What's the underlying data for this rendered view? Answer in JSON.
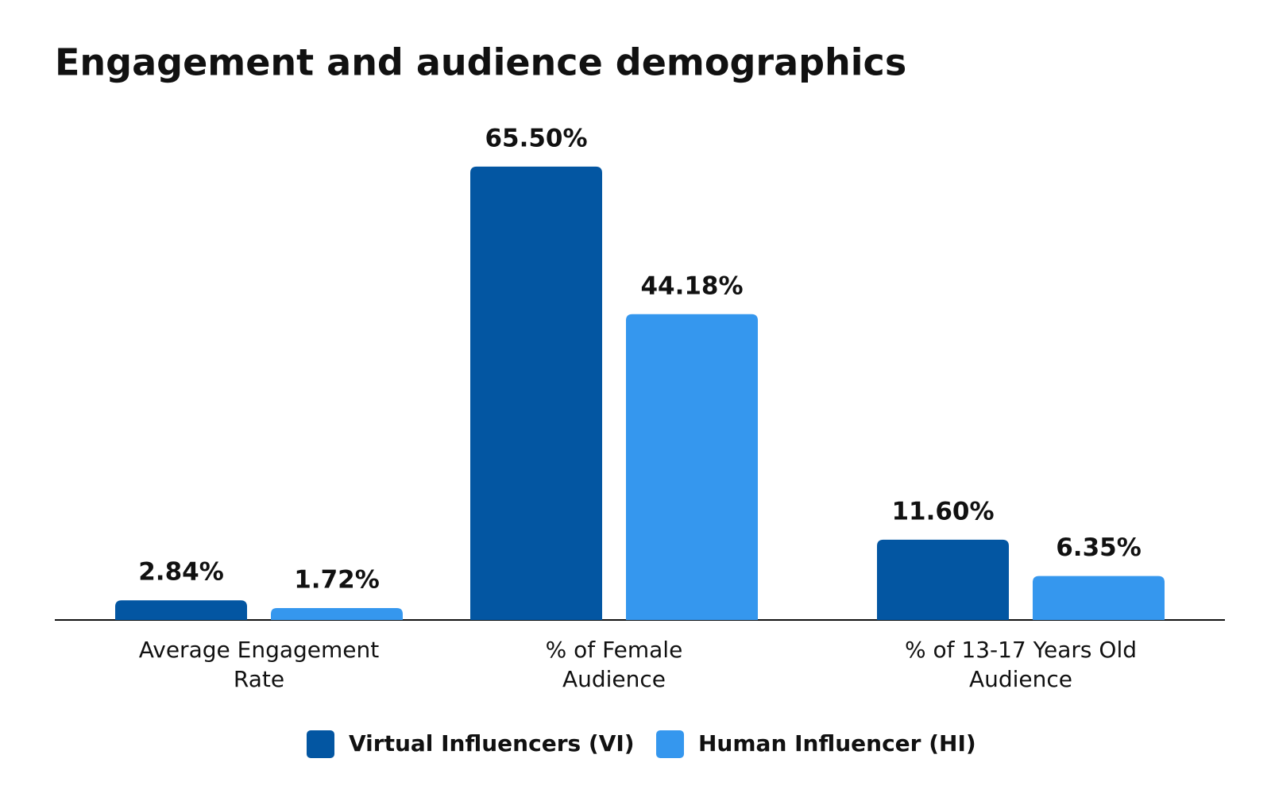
{
  "chart_data": {
    "type": "bar",
    "title": "Engagement and audience demographics",
    "categories": [
      [
        "Average Engagement",
        "Rate"
      ],
      [
        "% of Female",
        "Audience"
      ],
      [
        "% of 13-17 Years Old",
        "Audience"
      ]
    ],
    "series": [
      {
        "name": "Virtual Influencers (VI)",
        "color": "#0356a2",
        "values": [
          2.84,
          65.5,
          11.6
        ],
        "value_labels": [
          "2.84%",
          "65.50%",
          "11.60%"
        ]
      },
      {
        "name": "Human Influencer (HI)",
        "color": "#3597ee",
        "values": [
          1.72,
          44.18,
          6.35
        ],
        "value_labels": [
          "1.72%",
          "44.18%",
          "6.35%"
        ]
      }
    ],
    "ylim": [
      0,
      75
    ]
  }
}
